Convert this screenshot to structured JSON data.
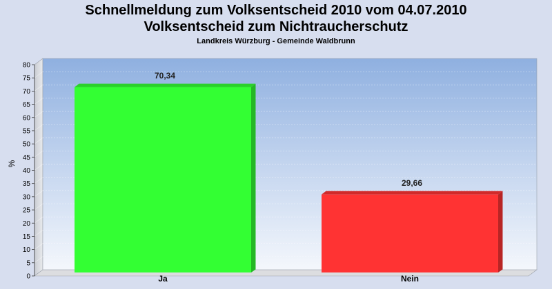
{
  "header": {
    "title_line1": "Schnellmeldung zum Volksentscheid 2010 vom 04.07.2010",
    "title_line2": "Volksentscheid zum Nichtraucherschutz",
    "subtitle": "Landkreis Würzburg - Gemeinde Waldbrunn"
  },
  "chart_data": {
    "type": "bar",
    "categories": [
      "Ja",
      "Nein"
    ],
    "values": [
      70.34,
      29.66
    ],
    "value_labels": [
      "70,34",
      "29,66"
    ],
    "colors": [
      "#33ff33",
      "#ff3333"
    ],
    "ylabel": "%",
    "xlabel": "",
    "ylim": [
      0,
      80
    ],
    "yticks": [
      0,
      5,
      10,
      15,
      20,
      25,
      30,
      35,
      40,
      45,
      50,
      55,
      60,
      65,
      70,
      75,
      80
    ],
    "grid": true,
    "legend": "none"
  }
}
